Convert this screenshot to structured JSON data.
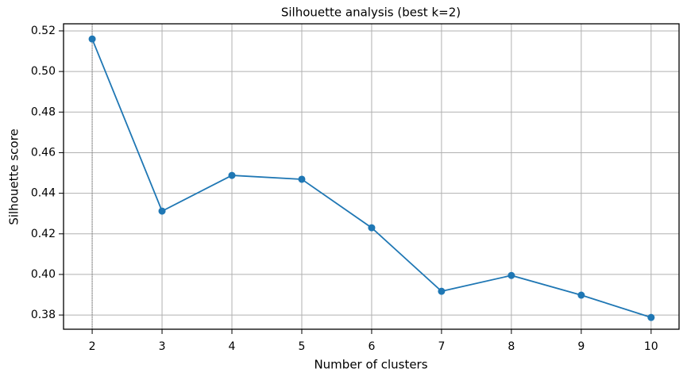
{
  "chart_data": {
    "type": "line",
    "title": "Silhouette analysis (best k=2)",
    "x_label": "Number of clusters",
    "y_label": "Silhouette score",
    "x": [
      2,
      3,
      4,
      5,
      6,
      7,
      8,
      9,
      10
    ],
    "series": [
      {
        "color": "#1f77b4",
        "values": [
          0.516,
          0.4312,
          0.4488,
          0.4469,
          0.423,
          0.3917,
          0.3995,
          0.3898,
          0.3788
        ]
      }
    ],
    "best_k": 2,
    "xlim": [
      1.59,
      10.4
    ],
    "ylim": [
      0.373,
      0.5235
    ],
    "xticks": [
      2,
      3,
      4,
      5,
      6,
      7,
      8,
      9,
      10
    ],
    "yticks": [
      0.38,
      {
        "value": 0.4,
        "label": "0.40"
      },
      0.42,
      0.44,
      0.46,
      0.48,
      {
        "value": 0.5,
        "label": "0.50"
      },
      0.52
    ],
    "grid": true
  }
}
